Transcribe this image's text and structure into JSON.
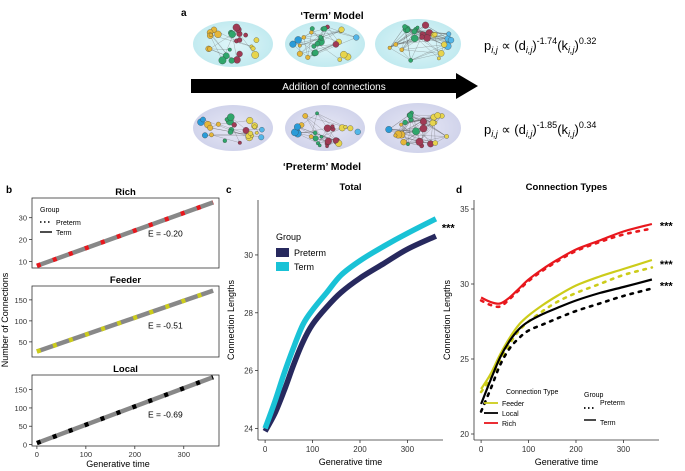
{
  "panel_a": {
    "letter": "a",
    "term_title": "‘Term’ Model",
    "preterm_title": "‘Preterm’ Model",
    "arrow_label": "Addition of connections",
    "term_formula": {
      "p": "p",
      "sub": "i,j",
      "rel": "∝ (d",
      "sub2": "i,j",
      "exp1": "-1.74",
      "mid": "(k",
      "sub3": "i,j",
      "exp2": "0.32"
    },
    "preterm_formula": {
      "p": "p",
      "sub": "i,j",
      "rel": "∝ (d",
      "sub2": "i,j",
      "exp1": "-1.85",
      "mid": "(k",
      "sub3": "i,j",
      "exp2": "0.34"
    }
  },
  "panel_b": {
    "letter": "b",
    "ylabel": "Number of Connections",
    "xlabel": "Generative time"
  },
  "panel_c": {
    "letter": "c"
  },
  "panel_d": {
    "letter": "d"
  },
  "colors": {
    "rich": "#e8171d",
    "feeder": "#cccc1a",
    "local": "#000000",
    "term": "#19c2d6",
    "preterm": "#27295e",
    "grey": "#888888"
  },
  "chart_data": [
    {
      "type": "line",
      "id": "rich",
      "title": "Rich",
      "x": [
        0,
        360
      ],
      "series": [
        {
          "name": "Term",
          "values": [
            8,
            37
          ]
        }
      ],
      "xlim": [
        -10,
        372
      ],
      "ylim": [
        7,
        39
      ],
      "yticks": [
        10,
        20,
        30
      ],
      "xticks": [],
      "annotation": "E = -0.20",
      "marker_color": "#e8171d",
      "legend": {
        "title": "Group",
        "items": [
          "Preterm",
          "Term"
        ]
      }
    },
    {
      "type": "line",
      "id": "feeder",
      "title": "Feeder",
      "x": [
        0,
        360
      ],
      "series": [
        {
          "name": "Term",
          "values": [
            27,
            172
          ]
        }
      ],
      "xlim": [
        -10,
        372
      ],
      "ylim": [
        14,
        183
      ],
      "yticks": [
        50,
        100,
        150
      ],
      "xticks": [],
      "annotation": "E = -0.51",
      "marker_color": "#cccc1a"
    },
    {
      "type": "line",
      "id": "local",
      "title": "Local",
      "x": [
        0,
        360
      ],
      "series": [
        {
          "name": "Term",
          "values": [
            4,
            184
          ]
        }
      ],
      "xlim": [
        -10,
        372
      ],
      "ylim": [
        -4,
        190
      ],
      "yticks": [
        0,
        50,
        100,
        150
      ],
      "xticks": [
        0,
        100,
        200,
        300
      ],
      "annotation": "E = -0.69",
      "marker_color": "#000000"
    },
    {
      "type": "line",
      "id": "total",
      "title": "Total",
      "xlabel": "Generative time",
      "ylabel": "Connection Lengths",
      "x": [
        0,
        20,
        40,
        60,
        80,
        100,
        130,
        160,
        200,
        250,
        300,
        360
      ],
      "series": [
        {
          "name": "Preterm",
          "values": [
            23.9,
            24.5,
            25.3,
            26.2,
            27.0,
            27.6,
            28.2,
            28.7,
            29.2,
            29.7,
            30.2,
            30.65
          ]
        },
        {
          "name": "Term",
          "values": [
            24.0,
            24.9,
            25.9,
            26.8,
            27.6,
            28.1,
            28.7,
            29.3,
            29.8,
            30.3,
            30.75,
            31.25
          ]
        }
      ],
      "xlim": [
        -15,
        375
      ],
      "ylim": [
        23.6,
        31.9
      ],
      "yticks": [
        24,
        26,
        28,
        30
      ],
      "xticks": [
        0,
        100,
        200,
        300
      ],
      "legend": {
        "title": "Group",
        "items": [
          "Preterm",
          "Term"
        ]
      },
      "significance": "***"
    },
    {
      "type": "line",
      "id": "connection-types",
      "title": "Connection Types",
      "xlabel": "Generative time",
      "ylabel": "Connection Lengths",
      "x": [
        0,
        20,
        40,
        60,
        80,
        100,
        130,
        160,
        200,
        250,
        300,
        360
      ],
      "series": [
        {
          "name": "Feeder Term",
          "values": [
            23.0,
            24.0,
            25.3,
            26.4,
            27.3,
            27.9,
            28.6,
            29.2,
            29.9,
            30.5,
            31.0,
            31.6
          ]
        },
        {
          "name": "Feeder Preterm",
          "values": [
            22.8,
            23.7,
            24.9,
            26.0,
            26.9,
            27.5,
            28.2,
            28.8,
            29.4,
            30.0,
            30.6,
            31.1
          ]
        },
        {
          "name": "Local Term",
          "values": [
            22.0,
            23.6,
            25.1,
            26.2,
            27.0,
            27.5,
            28.0,
            28.4,
            28.9,
            29.4,
            29.8,
            30.3
          ]
        },
        {
          "name": "Local Preterm",
          "values": [
            21.5,
            23.0,
            24.6,
            25.7,
            26.4,
            26.9,
            27.3,
            27.7,
            28.2,
            28.7,
            29.2,
            29.7
          ]
        },
        {
          "name": "Rich Term",
          "values": [
            29.1,
            28.8,
            28.7,
            29.1,
            29.7,
            30.3,
            31.0,
            31.6,
            32.3,
            32.9,
            33.5,
            34.0
          ]
        },
        {
          "name": "Rich Preterm",
          "values": [
            28.9,
            28.6,
            28.5,
            29.0,
            29.6,
            30.2,
            30.9,
            31.5,
            32.2,
            32.8,
            33.3,
            33.7
          ]
        }
      ],
      "xlim": [
        -15,
        375
      ],
      "ylim": [
        19.6,
        35.6
      ],
      "yticks": [
        20,
        25,
        30,
        35
      ],
      "xticks": [
        0,
        100,
        200,
        300
      ],
      "legend": {
        "title": "Connection Type",
        "items": [
          "Feeder",
          "Local",
          "Rich"
        ],
        "group_title": "Group",
        "group_items": [
          "Preterm",
          "Term"
        ]
      },
      "significance": [
        "***",
        "***",
        "***"
      ]
    }
  ]
}
